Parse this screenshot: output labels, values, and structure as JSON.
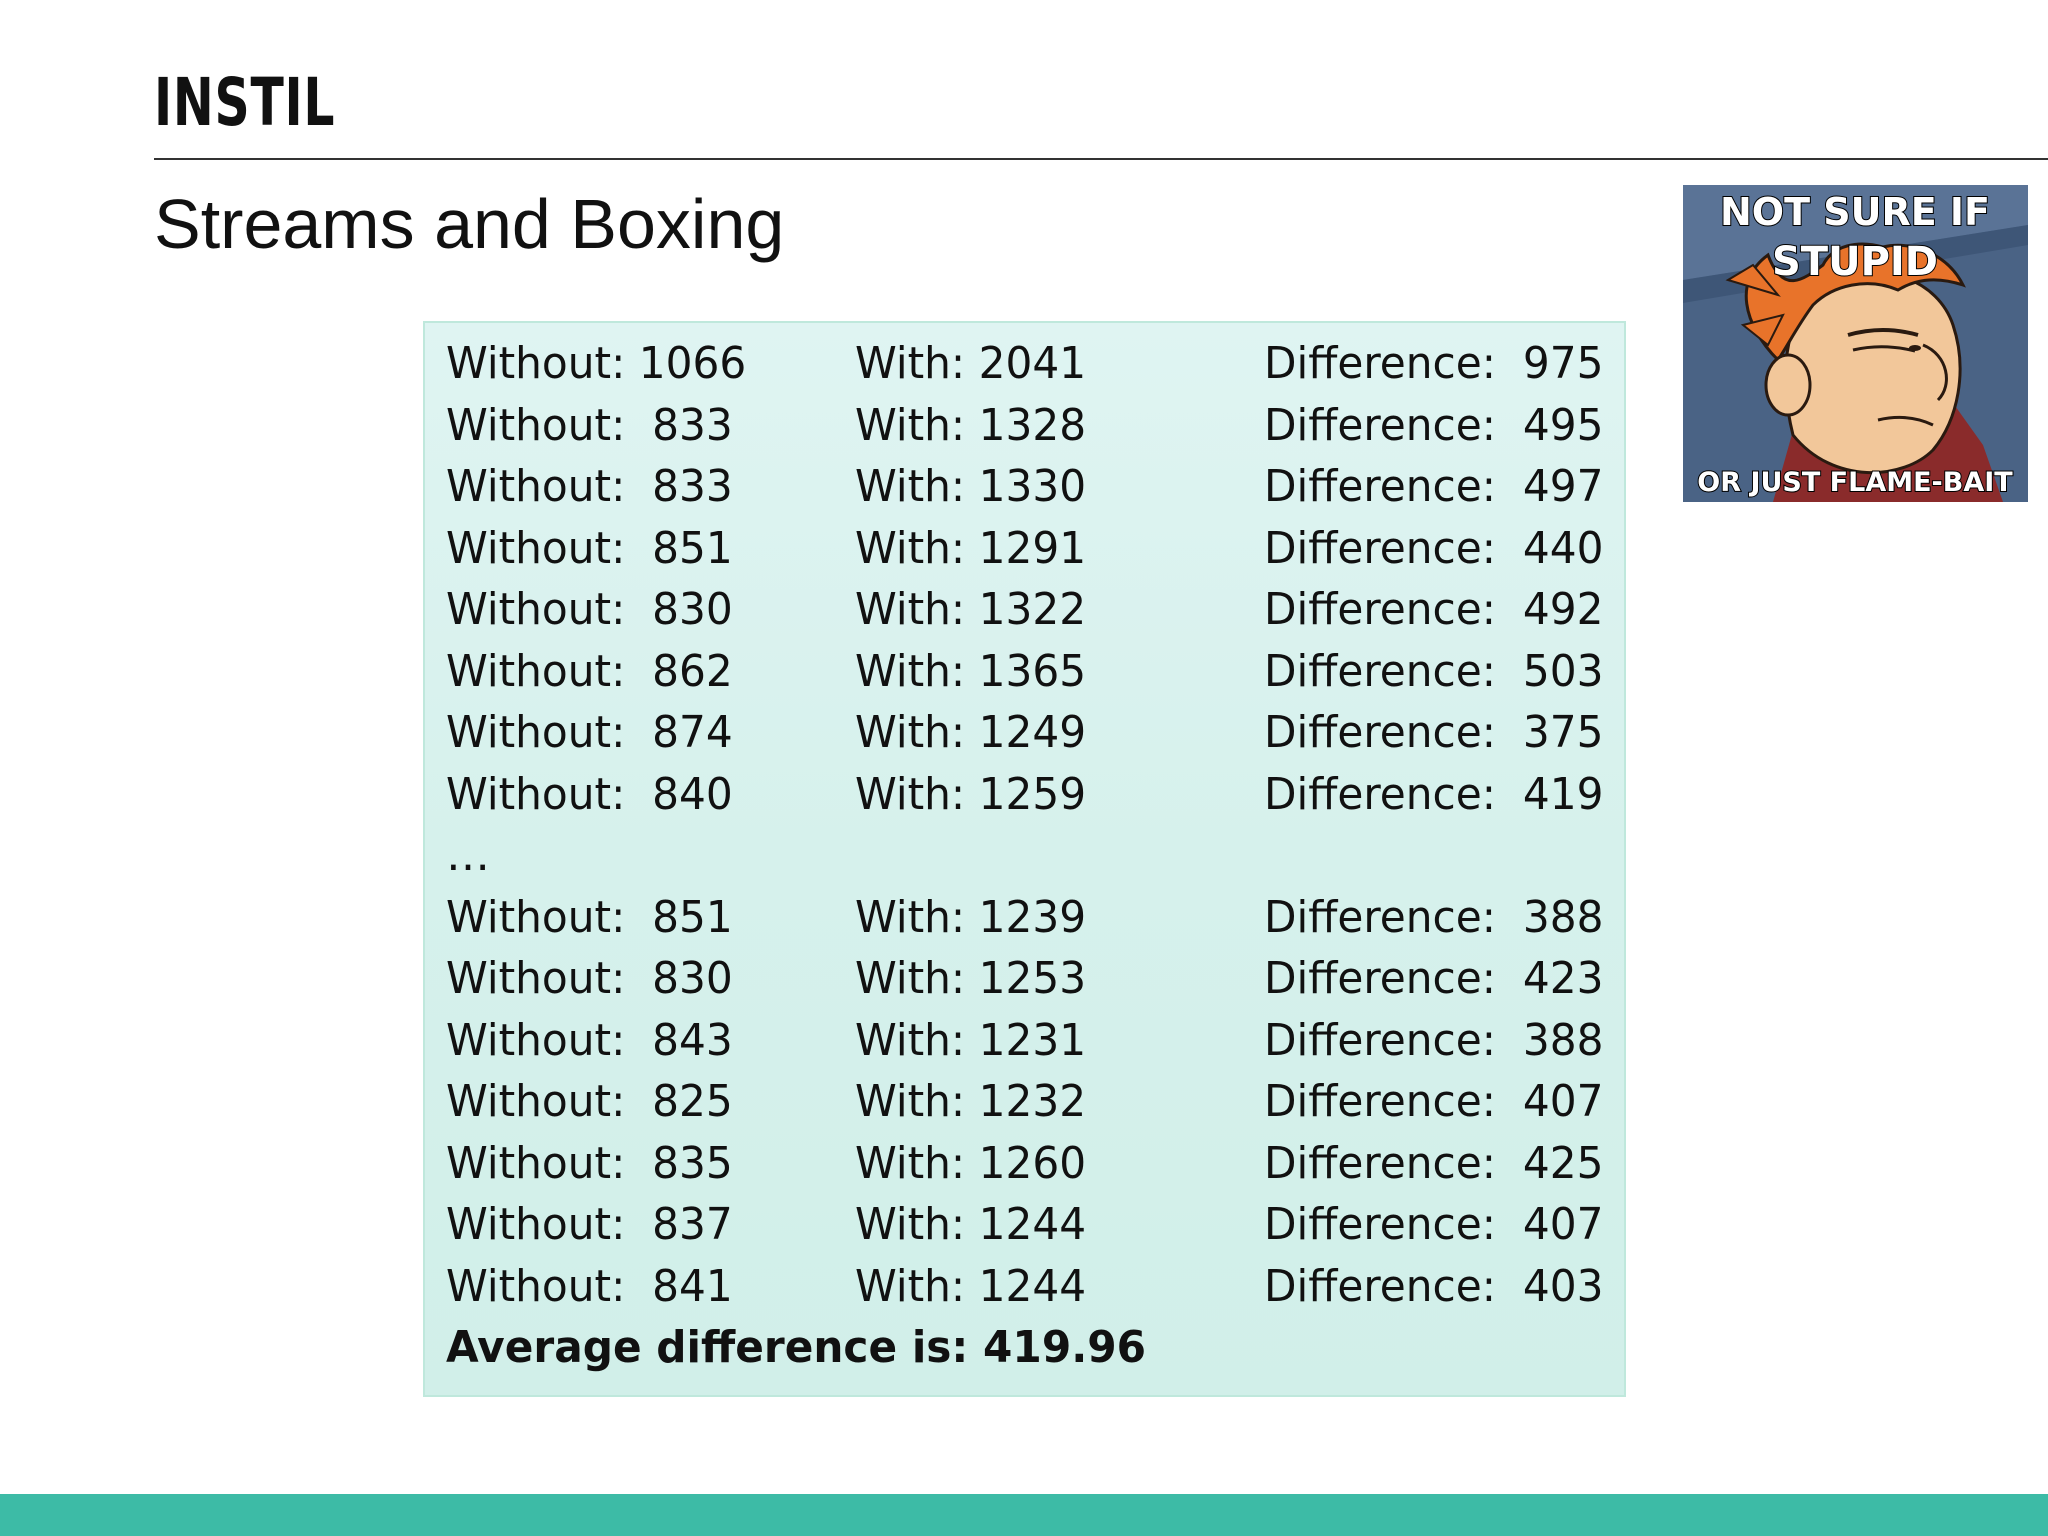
{
  "header": {
    "brand": "INSTIL",
    "title": "Streams and Boxing"
  },
  "results": {
    "rows_top": [
      {
        "without": "Without: 1066",
        "with": "With: 2041",
        "difference": "Difference:  975"
      },
      {
        "without": "Without:  833",
        "with": "With: 1328",
        "difference": "Difference:  495"
      },
      {
        "without": "Without:  833",
        "with": "With: 1330",
        "difference": "Difference:  497"
      },
      {
        "without": "Without:  851",
        "with": "With: 1291",
        "difference": "Difference:  440"
      },
      {
        "without": "Without:  830",
        "with": "With: 1322",
        "difference": "Difference:  492"
      },
      {
        "without": "Without:  862",
        "with": "With: 1365",
        "difference": "Difference:  503"
      },
      {
        "without": "Without:  874",
        "with": "With: 1249",
        "difference": "Difference:  375"
      },
      {
        "without": "Without:  840",
        "with": "With: 1259",
        "difference": "Difference:  419"
      }
    ],
    "ellipsis": "…",
    "rows_bottom": [
      {
        "without": "Without:  851",
        "with": "With: 1239",
        "difference": "Difference:  388"
      },
      {
        "without": "Without:  830",
        "with": "With: 1253",
        "difference": "Difference:  423"
      },
      {
        "without": "Without:  843",
        "with": "With: 1231",
        "difference": "Difference:  388"
      },
      {
        "without": "Without:  825",
        "with": "With: 1232",
        "difference": "Difference:  407"
      },
      {
        "without": "Without:  835",
        "with": "With: 1260",
        "difference": "Difference:  425"
      },
      {
        "without": "Without:  837",
        "with": "With: 1244",
        "difference": "Difference:  407"
      },
      {
        "without": "Without:  841",
        "with": "With: 1244",
        "difference": "Difference:  403"
      }
    ],
    "average": "Average difference is: 419.96"
  },
  "meme": {
    "top_line_1": "NOT SURE IF",
    "top_line_2": "STUPID",
    "bottom_line": "OR JUST FLAME-BAIT",
    "icon": "fry-squint-meme-image"
  },
  "colors": {
    "accent": "#3dbba6",
    "block_background": "#d8f2ee",
    "block_border": "#bfe8dc"
  }
}
